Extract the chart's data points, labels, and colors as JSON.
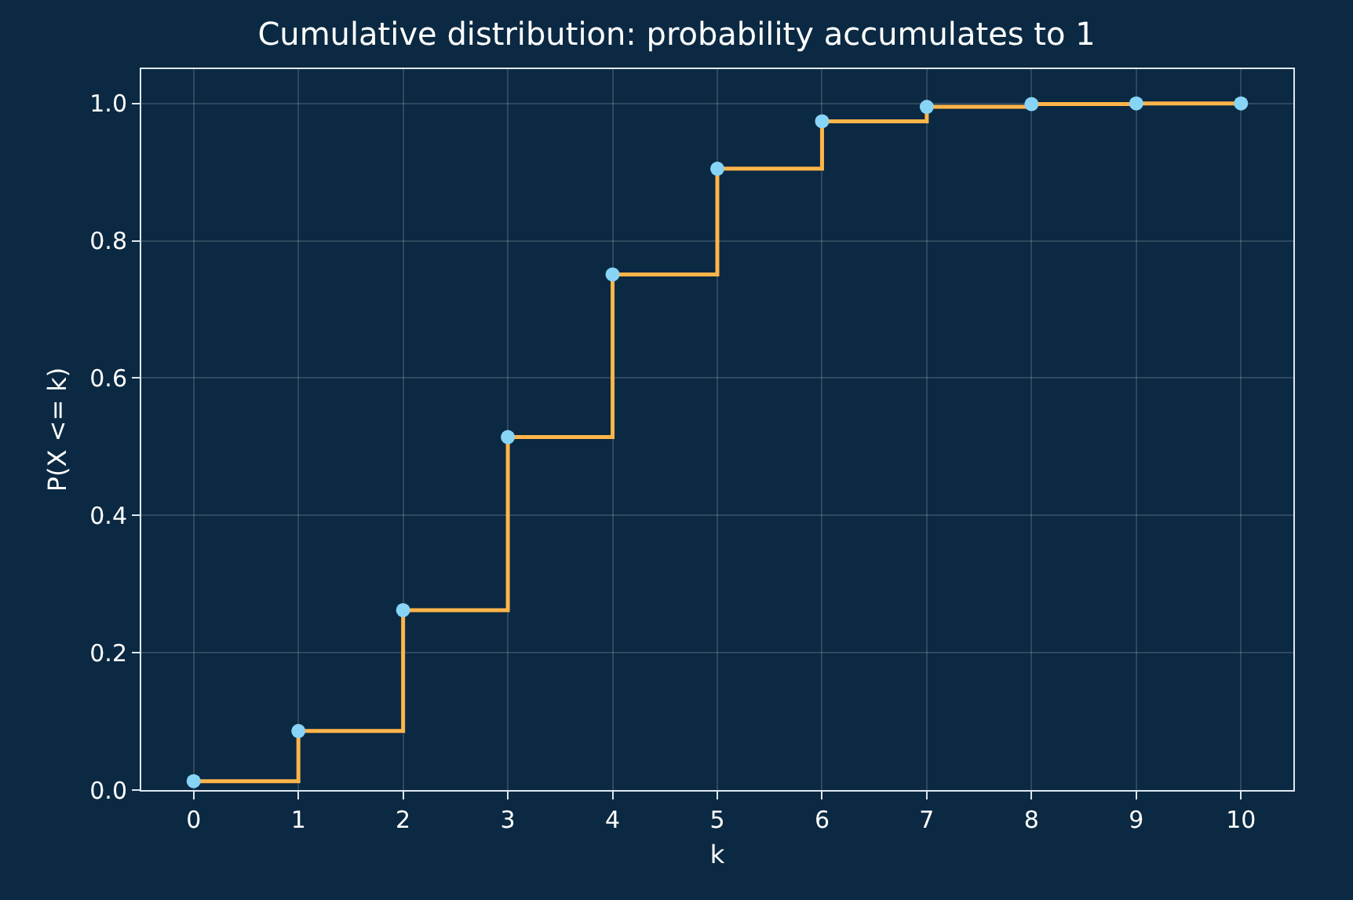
{
  "chart_data": {
    "type": "step",
    "title": "Cumulative distribution: probability accumulates to 1",
    "xlabel": "k",
    "ylabel": "P(X <= k)",
    "x": [
      0,
      1,
      2,
      3,
      4,
      5,
      6,
      7,
      8,
      9,
      10
    ],
    "series": [
      {
        "color": "#ffb54a",
        "values": [
          0.013,
          0.086,
          0.262,
          0.514,
          0.751,
          0.905,
          0.974,
          0.995,
          0.999,
          1.0,
          1.0
        ],
        "marker": "none"
      },
      {
        "type": "scatter",
        "color": "#87d4f7",
        "values": [
          0.013,
          0.086,
          0.262,
          0.514,
          0.751,
          0.905,
          0.974,
          0.995,
          0.999,
          1.0,
          1.0
        ],
        "marker": "circle"
      }
    ],
    "xlim": [
      -0.5,
      10.5
    ],
    "ylim": [
      0,
      1.05
    ],
    "xticks": [
      0,
      1,
      2,
      3,
      4,
      5,
      6,
      7,
      8,
      9,
      10
    ],
    "yticks": [
      {
        "value": 0,
        "label": "0.0"
      },
      {
        "value": 0.2,
        "label": "0.2"
      },
      {
        "value": 0.4,
        "label": "0.4"
      },
      {
        "value": 0.6,
        "label": "0.6"
      },
      {
        "value": 0.8,
        "label": "0.8"
      },
      {
        "value": 1,
        "label": "1.0"
      }
    ],
    "grid": true
  }
}
